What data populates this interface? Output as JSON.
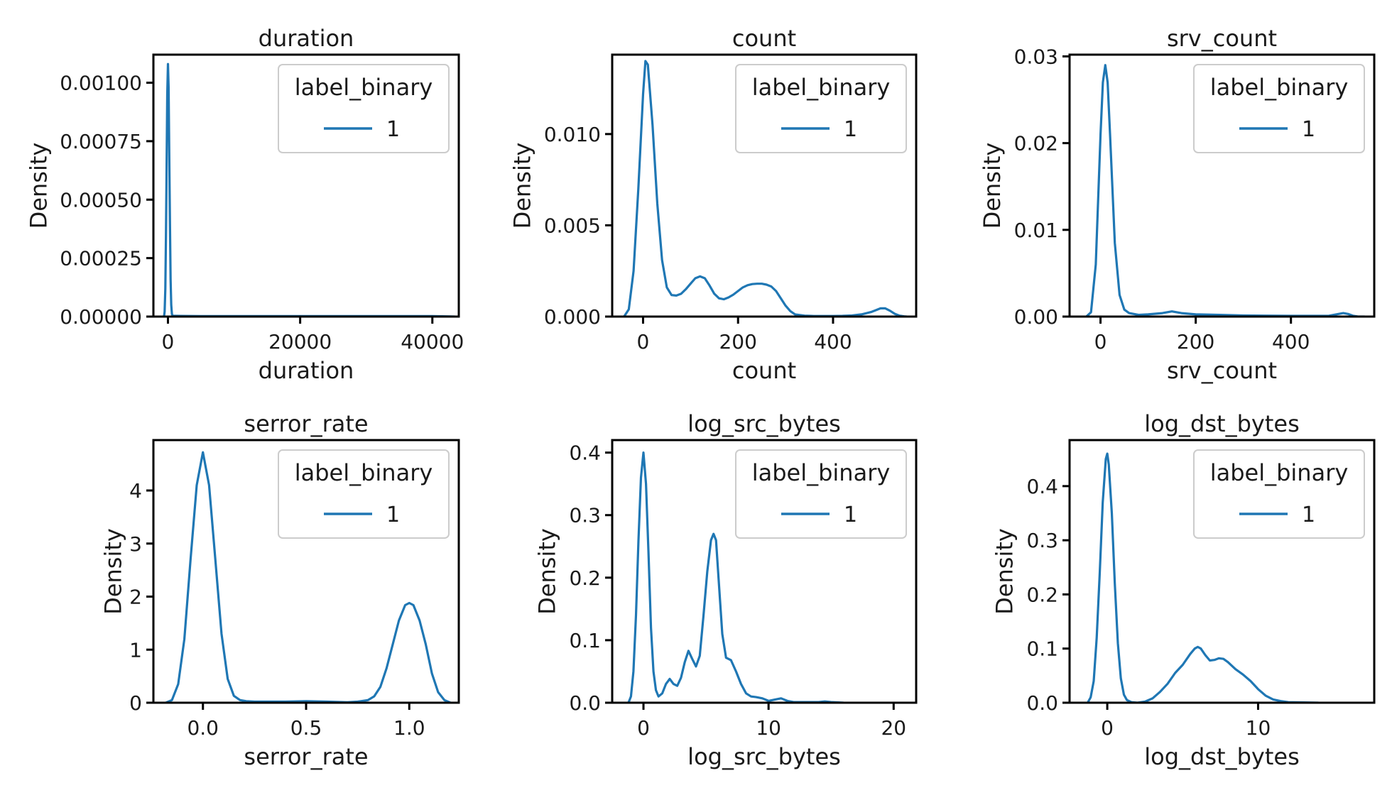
{
  "figure": {
    "background": "#ffffff",
    "line_color": "#1f77b4",
    "legend_title": "label_binary"
  },
  "chart_data": [
    {
      "type": "line",
      "title": "duration",
      "xlabel": "duration",
      "ylabel": "Density",
      "xlim": [
        -2200,
        44000
      ],
      "ylim": [
        0,
        0.00112
      ],
      "xticks": [
        0,
        20000,
        40000
      ],
      "xtick_labels": [
        "0",
        "20000",
        "40000"
      ],
      "yticks": [
        0,
        0.00025,
        0.0005,
        0.00075,
        0.001
      ],
      "ytick_labels": [
        "0.00000",
        "0.00025",
        "0.00050",
        "0.00075",
        "0.00100"
      ],
      "legend": {
        "title": "label_binary",
        "entries": [
          "1"
        ],
        "placement": "upper-right"
      },
      "series": [
        {
          "name": "1",
          "x": [
            -600,
            -500,
            -400,
            -300,
            -200,
            -100,
            0,
            100,
            200,
            300,
            400,
            500,
            600,
            700,
            800,
            1200,
            5000,
            20000,
            40000,
            43400
          ],
          "y": [
            0,
            2e-05,
            0.00012,
            0.00035,
            0.00065,
            0.00095,
            0.00108,
            0.00098,
            0.0007,
            0.0004,
            0.00016,
            5e-05,
            1e-05,
            5e-06,
            3e-06,
            3e-06,
            2e-06,
            2e-06,
            2e-06,
            0
          ]
        }
      ]
    },
    {
      "type": "line",
      "title": "count",
      "xlabel": "count",
      "ylabel": "Density",
      "xlim": [
        -65,
        575
      ],
      "ylim": [
        0,
        0.01435
      ],
      "xticks": [
        0,
        200,
        400
      ],
      "xtick_labels": [
        "0",
        "200",
        "400"
      ],
      "yticks": [
        0,
        0.005,
        0.01
      ],
      "ytick_labels": [
        "0.000",
        "0.005",
        "0.010"
      ],
      "legend": {
        "title": "label_binary",
        "entries": [
          "1"
        ],
        "placement": "upper-right"
      },
      "series": [
        {
          "name": "1",
          "x": [
            -40,
            -30,
            -20,
            -10,
            0,
            5,
            10,
            20,
            30,
            40,
            50,
            60,
            70,
            80,
            90,
            100,
            110,
            120,
            130,
            140,
            150,
            160,
            170,
            180,
            190,
            200,
            210,
            220,
            230,
            240,
            250,
            260,
            270,
            280,
            290,
            300,
            310,
            320,
            340,
            360,
            380,
            400,
            420,
            440,
            460,
            480,
            490,
            500,
            510,
            520,
            530,
            540,
            550,
            555
          ],
          "y": [
            0,
            0.0004,
            0.0025,
            0.007,
            0.0122,
            0.014,
            0.0138,
            0.0105,
            0.0062,
            0.0031,
            0.0016,
            0.00118,
            0.00115,
            0.00125,
            0.0015,
            0.0018,
            0.0021,
            0.0022,
            0.0021,
            0.0017,
            0.00125,
            0.001,
            0.00095,
            0.00105,
            0.0012,
            0.0014,
            0.0016,
            0.00172,
            0.00178,
            0.0018,
            0.0018,
            0.00175,
            0.00165,
            0.0014,
            0.001,
            0.0006,
            0.0003,
            0.00012,
            5e-05,
            3e-05,
            3e-05,
            3e-05,
            4e-05,
            6e-05,
            0.00012,
            0.00025,
            0.00035,
            0.00045,
            0.00045,
            0.00032,
            0.00015,
            5e-05,
            1e-05,
            0
          ]
        }
      ]
    },
    {
      "type": "line",
      "title": "srv_count",
      "xlabel": "srv_count",
      "ylabel": "Density",
      "xlim": [
        -65,
        575
      ],
      "ylim": [
        0,
        0.0302
      ],
      "xticks": [
        0,
        200,
        400
      ],
      "xtick_labels": [
        "0",
        "200",
        "400"
      ],
      "yticks": [
        0,
        0.01,
        0.02,
        0.03
      ],
      "ytick_labels": [
        "0.00",
        "0.01",
        "0.02",
        "0.03"
      ],
      "legend": {
        "title": "label_binary",
        "entries": [
          "1"
        ],
        "placement": "upper-right"
      },
      "series": [
        {
          "name": "1",
          "x": [
            -30,
            -20,
            -10,
            0,
            5,
            10,
            15,
            20,
            30,
            40,
            50,
            60,
            80,
            100,
            130,
            150,
            170,
            200,
            250,
            300,
            400,
            480,
            500,
            510,
            520,
            530,
            540,
            555
          ],
          "y": [
            0,
            0.0005,
            0.006,
            0.021,
            0.027,
            0.029,
            0.027,
            0.021,
            0.0085,
            0.0025,
            0.0008,
            0.0004,
            0.0002,
            0.00025,
            0.0004,
            0.0006,
            0.0004,
            0.00025,
            0.0002,
            0.00012,
            8e-05,
            0.0001,
            0.0003,
            0.0004,
            0.0003,
            0.0001,
            2e-05,
            0
          ]
        }
      ]
    },
    {
      "type": "line",
      "title": "serror_rate",
      "xlabel": "serror_rate",
      "ylabel": "Density",
      "xlim": [
        -0.24,
        1.24
      ],
      "ylim": [
        0,
        4.95
      ],
      "xticks": [
        0,
        0.5,
        1
      ],
      "xtick_labels": [
        "0.0",
        "0.5",
        "1.0"
      ],
      "yticks": [
        0,
        1,
        2,
        3,
        4
      ],
      "ytick_labels": [
        "0",
        "1",
        "2",
        "3",
        "4"
      ],
      "legend": {
        "title": "label_binary",
        "entries": [
          "1"
        ],
        "placement": "upper-right"
      },
      "series": [
        {
          "name": "1",
          "x": [
            -0.18,
            -0.15,
            -0.12,
            -0.09,
            -0.06,
            -0.03,
            0,
            0.03,
            0.06,
            0.09,
            0.12,
            0.15,
            0.18,
            0.21,
            0.25,
            0.3,
            0.4,
            0.5,
            0.6,
            0.7,
            0.75,
            0.8,
            0.83,
            0.86,
            0.89,
            0.92,
            0.95,
            0.98,
            1.0,
            1.02,
            1.05,
            1.08,
            1.11,
            1.14,
            1.17,
            1.2
          ],
          "y": [
            0,
            0.05,
            0.35,
            1.2,
            2.7,
            4.1,
            4.72,
            4.1,
            2.7,
            1.3,
            0.45,
            0.13,
            0.05,
            0.03,
            0.02,
            0.02,
            0.02,
            0.03,
            0.02,
            0.01,
            0.02,
            0.05,
            0.12,
            0.3,
            0.65,
            1.1,
            1.55,
            1.84,
            1.88,
            1.84,
            1.55,
            1.1,
            0.55,
            0.2,
            0.05,
            0
          ]
        }
      ]
    },
    {
      "type": "line",
      "title": "log_src_bytes",
      "xlabel": "log_src_bytes",
      "ylabel": "Density",
      "xlim": [
        -2.5,
        21.8
      ],
      "ylim": [
        0,
        0.42
      ],
      "xticks": [
        0,
        10,
        20
      ],
      "xtick_labels": [
        "0",
        "10",
        "20"
      ],
      "yticks": [
        0,
        0.1,
        0.2,
        0.3,
        0.4
      ],
      "ytick_labels": [
        "0.0",
        "0.1",
        "0.2",
        "0.3",
        "0.4"
      ],
      "legend": {
        "title": "label_binary",
        "entries": [
          "1"
        ],
        "placement": "upper-right"
      },
      "series": [
        {
          "name": "1",
          "x": [
            -1.2,
            -1.0,
            -0.8,
            -0.6,
            -0.4,
            -0.2,
            0,
            0.2,
            0.4,
            0.6,
            0.8,
            1.0,
            1.2,
            1.5,
            1.8,
            2.1,
            2.4,
            2.7,
            3.0,
            3.3,
            3.6,
            3.9,
            4.2,
            4.5,
            4.8,
            5.1,
            5.4,
            5.6,
            5.8,
            6.0,
            6.3,
            6.6,
            7.0,
            7.4,
            7.8,
            8.2,
            8.6,
            9.0,
            9.5,
            10.0,
            10.5,
            11.0,
            11.5,
            12.0,
            13.0,
            14.0,
            14.5,
            15.0,
            16.0
          ],
          "y": [
            0,
            0.01,
            0.05,
            0.14,
            0.26,
            0.36,
            0.4,
            0.35,
            0.24,
            0.12,
            0.05,
            0.02,
            0.01,
            0.015,
            0.03,
            0.038,
            0.03,
            0.027,
            0.04,
            0.065,
            0.083,
            0.07,
            0.058,
            0.075,
            0.14,
            0.21,
            0.26,
            0.27,
            0.26,
            0.2,
            0.11,
            0.072,
            0.068,
            0.05,
            0.03,
            0.015,
            0.01,
            0.009,
            0.007,
            0.003,
            0.005,
            0.007,
            0.003,
            0.001,
            0.001,
            0.001,
            0.002,
            0.001,
            0
          ]
        }
      ]
    },
    {
      "type": "line",
      "title": "log_dst_bytes",
      "xlabel": "log_dst_bytes",
      "ylabel": "Density",
      "xlim": [
        -2.5,
        17.7
      ],
      "ylim": [
        0,
        0.485
      ],
      "xticks": [
        0,
        10
      ],
      "xtick_labels": [
        "0",
        "10"
      ],
      "yticks": [
        0,
        0.1,
        0.2,
        0.3,
        0.4
      ],
      "ytick_labels": [
        "0.0",
        "0.1",
        "0.2",
        "0.3",
        "0.4"
      ],
      "legend": {
        "title": "label_binary",
        "entries": [
          "1"
        ],
        "placement": "upper-right"
      },
      "series": [
        {
          "name": "1",
          "x": [
            -1.3,
            -1.1,
            -0.9,
            -0.7,
            -0.5,
            -0.3,
            -0.1,
            0,
            0.1,
            0.3,
            0.5,
            0.7,
            0.9,
            1.1,
            1.3,
            1.6,
            2.0,
            2.5,
            3.0,
            3.5,
            4.0,
            4.5,
            5.0,
            5.5,
            5.8,
            6.0,
            6.2,
            6.5,
            6.8,
            7.1,
            7.4,
            7.7,
            8.0,
            8.5,
            9.0,
            9.5,
            10.0,
            10.5,
            11.0,
            11.5,
            12.0,
            13.0,
            14.0
          ],
          "y": [
            0,
            0.01,
            0.04,
            0.12,
            0.24,
            0.37,
            0.45,
            0.46,
            0.44,
            0.35,
            0.22,
            0.11,
            0.045,
            0.015,
            0.005,
            0.001,
            0.0,
            0.002,
            0.008,
            0.02,
            0.035,
            0.055,
            0.07,
            0.09,
            0.1,
            0.103,
            0.1,
            0.088,
            0.078,
            0.079,
            0.082,
            0.081,
            0.075,
            0.062,
            0.052,
            0.04,
            0.025,
            0.013,
            0.006,
            0.003,
            0.001,
            0.0005,
            0
          ]
        }
      ]
    }
  ]
}
